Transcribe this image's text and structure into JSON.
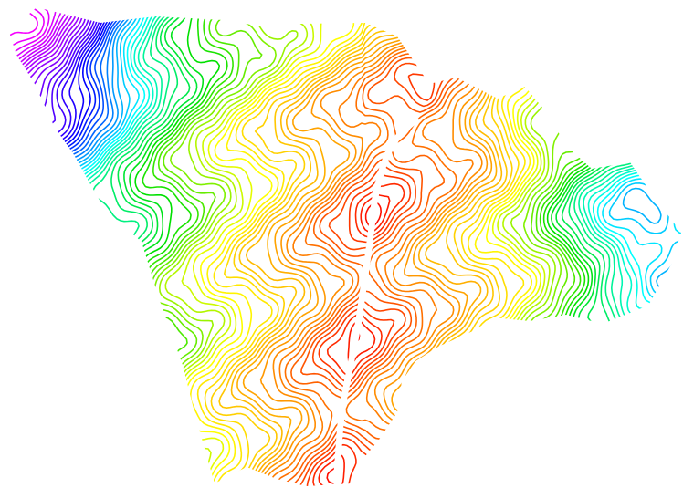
{
  "map": {
    "kind": "topographic contour map",
    "colormap": "rainbow",
    "color_stops": [
      "#ff0000",
      "#ff8c00",
      "#ffff00",
      "#00e000",
      "#00ffff",
      "#0000ff",
      "#a000ff",
      "#ff00ff"
    ],
    "background": "#ffffff",
    "features": [
      {
        "type": "river",
        "label": ""
      }
    ]
  }
}
